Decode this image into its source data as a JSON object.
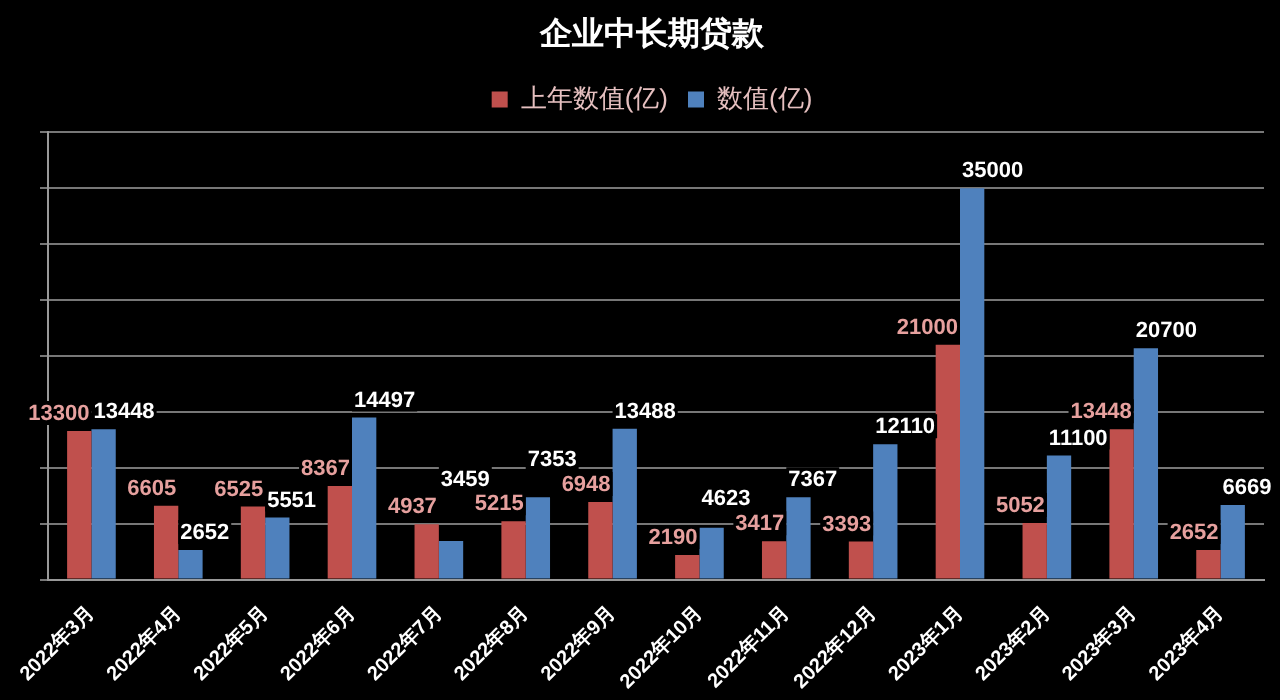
{
  "chart_data": {
    "type": "bar",
    "title": "企业中长期贷款",
    "categories": [
      "2022年3月",
      "2022年4月",
      "2022年5月",
      "2022年6月",
      "2022年7月",
      "2022年8月",
      "2022年9月",
      "2022年10月",
      "2022年11月",
      "2022年12月",
      "2023年1月",
      "2023年2月",
      "2023年3月",
      "2023年4月"
    ],
    "series": [
      {
        "name": "上年数值(亿)",
        "color": "#c0504d",
        "values": [
          13300,
          6605,
          6525,
          8367,
          4937,
          5215,
          6948,
          2190,
          3417,
          3393,
          21000,
          5052,
          13448,
          2652
        ]
      },
      {
        "name": "数值(亿)",
        "color": "#4f81bd",
        "values": [
          13448,
          2652,
          5551,
          14497,
          3459,
          7353,
          13488,
          4623,
          7367,
          12110,
          35000,
          11100,
          20700,
          6669
        ]
      }
    ],
    "ylim": [
      0,
      40000
    ],
    "yticks": [
      {
        "value": 0,
        "label": null
      },
      {
        "value": 5000,
        "label": null
      },
      {
        "value": 10000,
        "label": null
      },
      {
        "value": 15000,
        "label": null
      },
      {
        "value": 20000,
        "label": null
      },
      {
        "value": 25000,
        "label": null
      },
      {
        "value": 30000,
        "label": null
      },
      {
        "value": 35000,
        "label": null
      },
      {
        "value": 40000,
        "label": null
      }
    ],
    "tick_labels": "x",
    "grid": "y",
    "legend": "top",
    "data_labels": true
  }
}
